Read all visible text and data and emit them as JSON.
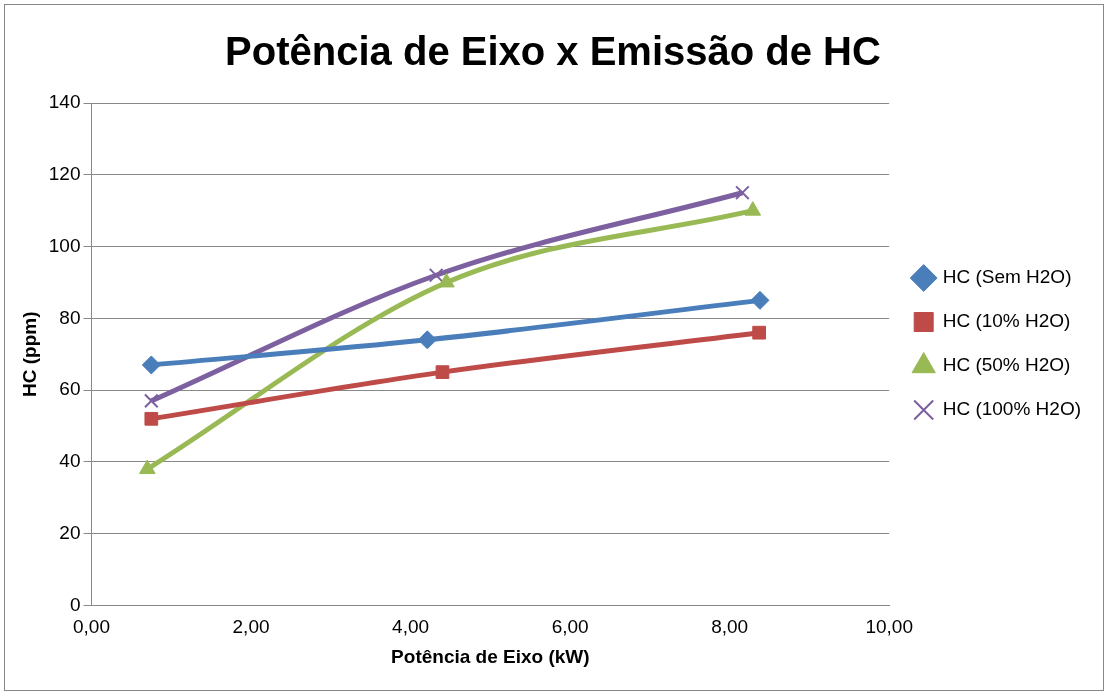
{
  "chart_data": {
    "type": "line",
    "title": "Potência de Eixo x Emissão de HC",
    "xlabel": "Potência de Eixo (kW)",
    "ylabel": "HC (ppm)",
    "xlim": [
      0,
      10
    ],
    "xticks": [
      {
        "value": 0,
        "label": "0,00"
      },
      {
        "value": 2,
        "label": "2,00"
      },
      {
        "value": 4,
        "label": "4,00"
      },
      {
        "value": 6,
        "label": "6,00"
      },
      {
        "value": 8,
        "label": "8,00"
      },
      {
        "value": 10,
        "label": "10,00"
      }
    ],
    "ylim": [
      0,
      140
    ],
    "yticks": [
      0,
      20,
      40,
      60,
      80,
      100,
      120,
      140
    ],
    "grid": "y",
    "legend": "right",
    "series": [
      {
        "name": "HC (Sem H2O)",
        "color": "#4a7ebb",
        "marker": "diamond",
        "x": [
          0.75,
          4.21,
          8.38
        ],
        "values": [
          67,
          74,
          85
        ]
      },
      {
        "name": "HC (10% H2O)",
        "color": "#be4b48",
        "marker": "square",
        "x": [
          0.75,
          4.4,
          8.37
        ],
        "values": [
          52,
          65,
          76
        ]
      },
      {
        "name": "HC (50% H2O)",
        "color": "#98b954",
        "marker": "triangle",
        "x": [
          0.7,
          4.45,
          8.29
        ],
        "values": [
          38,
          90,
          110
        ]
      },
      {
        "name": "HC (100% H2O)",
        "color": "#7d60a0",
        "marker": "cross",
        "x": [
          0.75,
          4.32,
          8.16
        ],
        "values": [
          57,
          92,
          115
        ]
      }
    ]
  }
}
